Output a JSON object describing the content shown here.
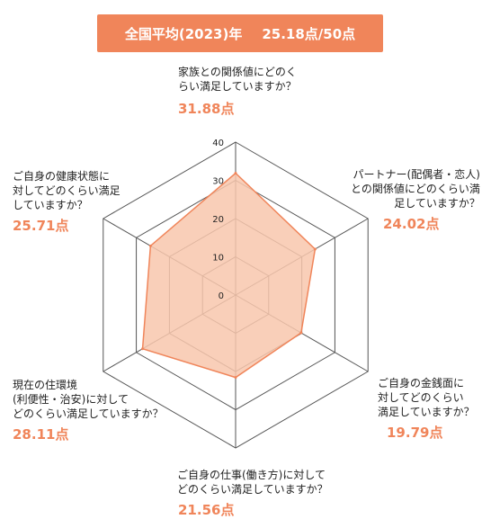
{
  "header": {
    "title": "全国平均(2023)年",
    "total": "25.18点/50点"
  },
  "chart_data": {
    "type": "radar",
    "ylim": [
      0,
      40
    ],
    "ticks": [
      "0",
      "10",
      "20",
      "30",
      "40"
    ],
    "colors": {
      "fill": "#f8c7ad",
      "stroke": "#f0855a",
      "grid": "#555555",
      "accent": "#f0855a"
    },
    "axes": [
      {
        "label": "家族との関係値にどのく\nらい満足していますか？",
        "value": 31.88,
        "value_label": "31.88点"
      },
      {
        "label": "パートナー(配偶者・恋人)\nとの関係値にどのくらい満\n足していますか？",
        "value": 24.02,
        "value_label": "24.02点"
      },
      {
        "label": "ご自身の金銭面に\n対してどのくらい\n満足していますか？",
        "value": 19.79,
        "value_label": "19.79点"
      },
      {
        "label": "ご自身の仕事(働き方)に対して\nどのくらい満足していますか？",
        "value": 21.56,
        "value_label": "21.56点"
      },
      {
        "label": "現在の住環境\n(利便性・治安)に対して\nどのくらい満足していますか？",
        "value": 28.11,
        "value_label": "28.11点"
      },
      {
        "label": "ご自身の健康状態に\n対してどのくらい満足\nしていますか？",
        "value": 25.71,
        "value_label": "25.71点"
      }
    ]
  }
}
